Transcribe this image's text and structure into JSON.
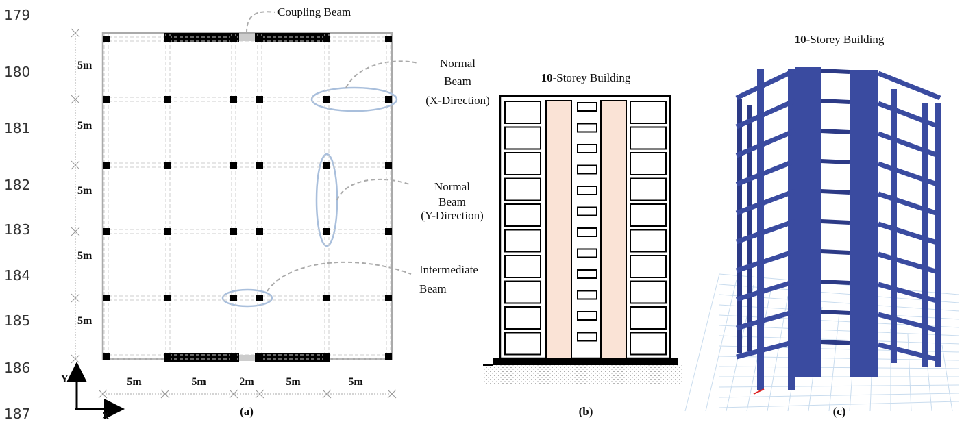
{
  "line_numbers": [
    "179",
    "180",
    "181",
    "182",
    "183",
    "184",
    "185",
    "186",
    "187"
  ],
  "panel_a": {
    "coupling_label": "Coupling Beam",
    "normal_x_label": [
      "Normal",
      "Beam",
      "(X-Direction)"
    ],
    "normal_y_label": [
      "Normal",
      "Beam",
      "(Y-Direction)"
    ],
    "intermediate_label": [
      "Intermediate",
      "Beam"
    ],
    "y_spans": [
      "5m",
      "5m",
      "5m",
      "5m",
      "5m"
    ],
    "x_spans": [
      "5m",
      "5m",
      "2m",
      "5m",
      "5m"
    ],
    "axis_y": "Y",
    "axis_x": "X",
    "caption": "(a)"
  },
  "panel_b": {
    "title_bold": "10",
    "title_rest": "-Storey Building",
    "caption": "(b)"
  },
  "panel_c": {
    "title_bold": "10",
    "title_rest": "-Storey Building",
    "caption": "(c)"
  }
}
